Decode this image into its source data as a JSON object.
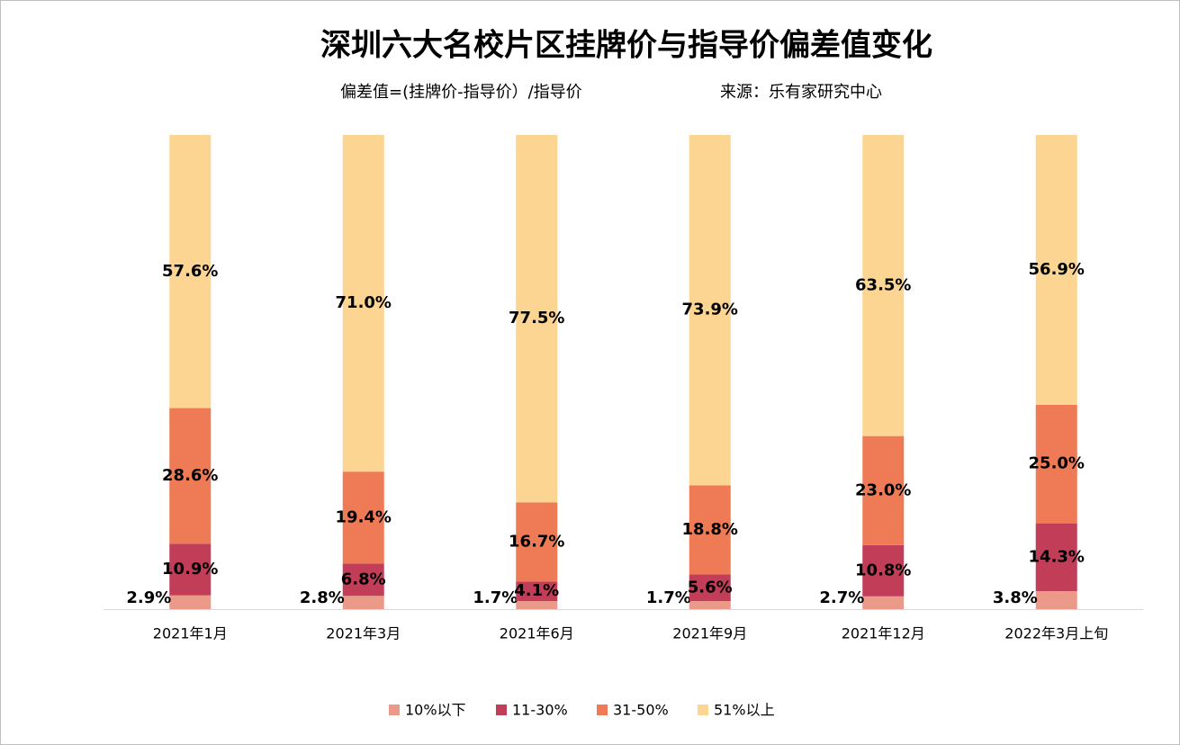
{
  "chart_data": {
    "type": "stacked_bar",
    "title": "深圳六大名校片区挂牌价与指导价偏差值变化",
    "subtitle": "偏差值=(挂牌价-指导价）/指导价",
    "source": "来源：乐有家研究中心",
    "categories": [
      "2021年1月",
      "2021年3月",
      "2021年6月",
      "2021年9月",
      "2021年12月",
      "2022年3月上旬"
    ],
    "ylim": [
      0,
      100
    ],
    "legend": "bottom",
    "series": [
      {
        "name": "10%以下",
        "color": "#eb9a8a",
        "values": [
          2.9,
          2.8,
          1.7,
          1.7,
          2.7,
          3.8
        ],
        "value_labels": [
          "2.9%",
          "2.8%",
          "1.7%",
          "1.7%",
          "2.7%",
          "3.8%"
        ]
      },
      {
        "name": "11-30%",
        "color": "#c13d58",
        "values": [
          10.9,
          6.8,
          4.1,
          5.6,
          10.8,
          14.3
        ],
        "value_labels": [
          "10.9%",
          "6.8%",
          "4.1%",
          "5.6%",
          "10.8%",
          "14.3%"
        ]
      },
      {
        "name": "31-50%",
        "color": "#ee7b55",
        "values": [
          28.6,
          19.4,
          16.7,
          18.8,
          23.0,
          25.0
        ],
        "value_labels": [
          "28.6%",
          "19.4%",
          "16.7%",
          "18.8%",
          "23.0%",
          "25.0%"
        ]
      },
      {
        "name": "51%以上",
        "color": "#fdd593",
        "values": [
          57.6,
          71.0,
          77.5,
          73.9,
          63.5,
          56.9
        ],
        "value_labels": [
          "57.6%",
          "71.0%",
          "77.5%",
          "73.9%",
          "63.5%",
          "56.9%"
        ]
      }
    ]
  }
}
